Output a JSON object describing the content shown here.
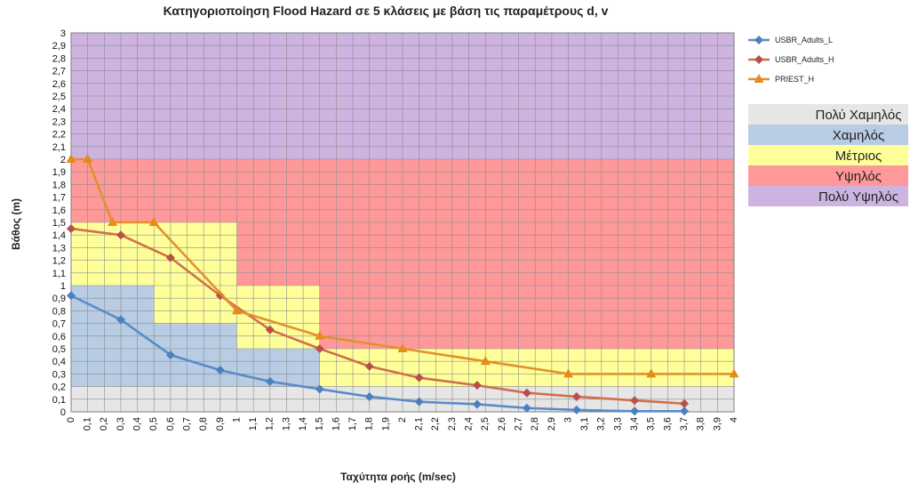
{
  "chart_data": {
    "type": "line",
    "title": "Κατηγοριοποίηση Flood Hazard σε 5 κλάσεις με βάση τις παραμέτρους d, v",
    "xlabel": "Ταχύτητα ροής  (m/sec)",
    "ylabel": "Βάθος (m)",
    "xlim": [
      0,
      4
    ],
    "ylim": [
      0,
      3
    ],
    "x_ticks": [
      "0",
      "0,1",
      "0,2",
      "0,3",
      "0,4",
      "0,5",
      "0,6",
      "0,7",
      "0,8",
      "0,9",
      "1",
      "1,1",
      "1,2",
      "1,3",
      "1,4",
      "1,5",
      "1,6",
      "1,7",
      "1,8",
      "1,9",
      "2",
      "2,1",
      "2,2",
      "2,3",
      "2,4",
      "2,5",
      "2,6",
      "2,7",
      "2,8",
      "2,9",
      "3",
      "3,1",
      "3,2",
      "3,3",
      "3,4",
      "3,5",
      "3,6",
      "3,7",
      "3,8",
      "3,9",
      "4"
    ],
    "y_ticks": [
      "0",
      "0,1",
      "0,2",
      "0,3",
      "0,4",
      "0,5",
      "0,6",
      "0,7",
      "0,8",
      "0,9",
      "1",
      "1,1",
      "1,2",
      "1,3",
      "1,4",
      "1,5",
      "1,6",
      "1,7",
      "1,8",
      "1,9",
      "2",
      "2,1",
      "2,2",
      "2,3",
      "2,4",
      "2,5",
      "2,6",
      "2,7",
      "2,8",
      "2,9",
      "3"
    ],
    "grid": true,
    "legend_position": "right",
    "hazard_classes": [
      {
        "name": "Πολύ Χαμηλός",
        "color": "#e6e6e6"
      },
      {
        "name": "Χαμηλός",
        "color": "#b8cce4"
      },
      {
        "name": "Μέτριος",
        "color": "#ffff99"
      },
      {
        "name": "Υψηλός",
        "color": "#ff9999"
      },
      {
        "name": "Πολύ Υψηλός",
        "color": "#ccb3e0"
      }
    ],
    "hazard_regions": [
      {
        "class": 4,
        "x": [
          0,
          4
        ],
        "y": [
          0,
          3
        ]
      },
      {
        "class": 3,
        "x": [
          0,
          4
        ],
        "y": [
          0,
          2
        ]
      },
      {
        "class": 2,
        "x": [
          0,
          1
        ],
        "y": [
          0,
          1.5
        ]
      },
      {
        "class": 2,
        "x": [
          1,
          1.5
        ],
        "y": [
          0,
          1
        ]
      },
      {
        "class": 2,
        "x": [
          1.5,
          4
        ],
        "y": [
          0,
          0.5
        ]
      },
      {
        "class": 1,
        "x": [
          0,
          0.5
        ],
        "y": [
          0,
          1
        ]
      },
      {
        "class": 1,
        "x": [
          0.5,
          1
        ],
        "y": [
          0,
          0.7
        ]
      },
      {
        "class": 1,
        "x": [
          1,
          1.5
        ],
        "y": [
          0,
          0.5
        ]
      },
      {
        "class": 1,
        "x": [
          1.5,
          4
        ],
        "y": [
          0,
          0.2
        ]
      },
      {
        "class": 0,
        "x": [
          0,
          4
        ],
        "y": [
          0,
          0.2
        ]
      }
    ],
    "series": [
      {
        "name": "USBR_Adults_L",
        "color": "#4f81bd",
        "marker": "diamond",
        "x": [
          0,
          0.3,
          0.6,
          0.9,
          1.2,
          1.5,
          1.8,
          2.1,
          2.45,
          2.75,
          3.05,
          3.4,
          3.7
        ],
        "y": [
          0.92,
          0.73,
          0.45,
          0.33,
          0.24,
          0.18,
          0.12,
          0.08,
          0.06,
          0.03,
          0.015,
          0.005,
          0.005
        ]
      },
      {
        "name": "USBR_Adults_H",
        "color": "#c0504d",
        "marker": "diamond",
        "x": [
          0,
          0.3,
          0.6,
          0.9,
          1.2,
          1.5,
          1.8,
          2.1,
          2.45,
          2.75,
          3.05,
          3.4,
          3.7
        ],
        "y": [
          1.45,
          1.4,
          1.22,
          0.92,
          0.65,
          0.5,
          0.36,
          0.27,
          0.21,
          0.15,
          0.12,
          0.09,
          0.065
        ]
      },
      {
        "name": "PRIEST_H",
        "color": "#c0504d",
        "marker": "triangle",
        "x": [
          0,
          0.1,
          0.25,
          0.5,
          1,
          1.5,
          2,
          2.5,
          3,
          3.5,
          4
        ],
        "y": [
          2,
          2,
          1.5,
          1.5,
          0.8,
          0.6,
          0.5,
          0.4,
          0.3,
          0.3,
          0.3
        ]
      }
    ]
  }
}
